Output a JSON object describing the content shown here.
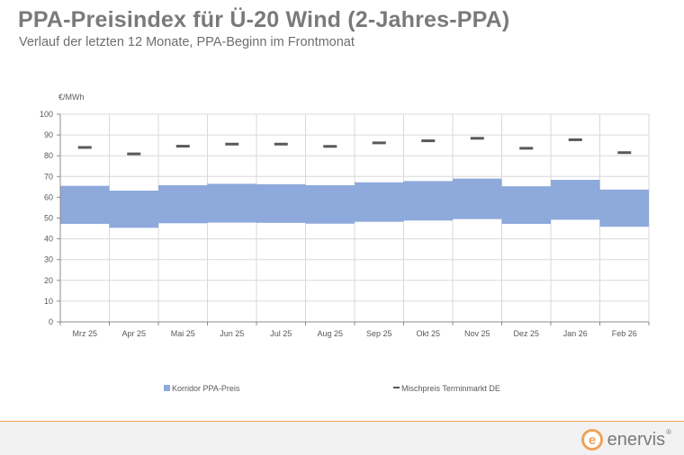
{
  "header": {
    "title": "PPA-Preisindex für Ü-20 Wind (2-Jahres-PPA)",
    "subtitle": "Verlauf der letzten 12 Monate, PPA-Beginn im Frontmonat"
  },
  "chart_data": {
    "type": "bar",
    "ylabel": "€/MWh",
    "ylim": [
      0,
      100
    ],
    "yticks": [
      0,
      10,
      20,
      30,
      40,
      50,
      60,
      70,
      80,
      90,
      100
    ],
    "grid": true,
    "categories": [
      "Mrz 25",
      "Apr 25",
      "Mai 25",
      "Jun 25",
      "Jul 25",
      "Aug 25",
      "Sep 25",
      "Okt 25",
      "Nov 25",
      "Dez 25",
      "Jan 26",
      "Feb 26"
    ],
    "series": [
      {
        "name": "Korridor PPA-Preis",
        "kind": "range-bar",
        "color": "#8ea9db",
        "low": [
          47.2,
          45.3,
          47.5,
          47.8,
          47.7,
          47.3,
          48.2,
          48.8,
          49.5,
          47.2,
          49.2,
          45.8
        ],
        "high": [
          65.5,
          63.2,
          65.8,
          66.5,
          66.3,
          65.8,
          67.2,
          67.8,
          69.0,
          65.3,
          68.4,
          63.7
        ]
      },
      {
        "name": "Mischpreis Terminmarkt DE",
        "kind": "dash-marker",
        "color": "#595959",
        "values": [
          84.0,
          80.9,
          84.6,
          85.6,
          85.6,
          84.5,
          86.2,
          87.2,
          88.4,
          83.6,
          87.7,
          81.5
        ]
      }
    ],
    "legend_position": "bottom"
  },
  "legend": {
    "corridor_label": "Korridor PPA-Preis",
    "marker_label": "Mischpreis Terminmarkt DE"
  },
  "brand": {
    "logo_letter": "e",
    "logo_text": "enervis",
    "logo_reg": "®",
    "accent_color": "#f0a35a"
  }
}
